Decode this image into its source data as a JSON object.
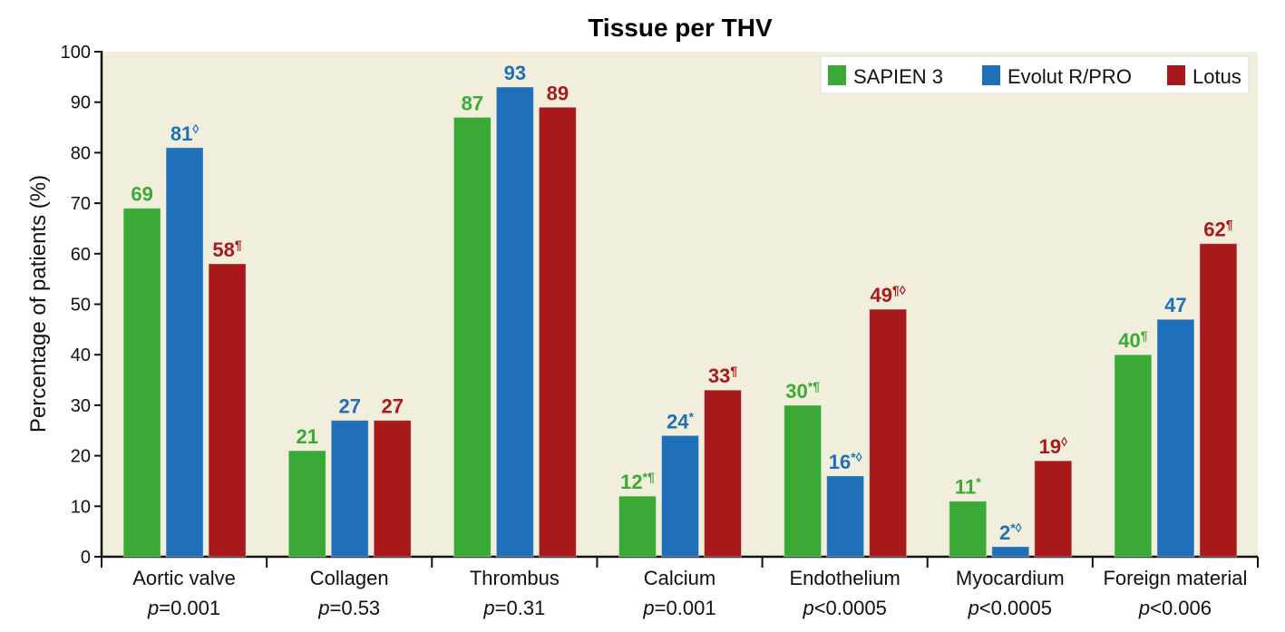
{
  "chart_data": {
    "type": "bar",
    "title": "Tissue per THV",
    "xlabel": "",
    "ylabel": "Percentage of patients (%)",
    "ylim": [
      0,
      100
    ],
    "yticks": [
      0,
      10,
      20,
      30,
      40,
      50,
      60,
      70,
      80,
      90,
      100
    ],
    "grid": false,
    "legend_position": "top-right",
    "categories": [
      "Aortic valve",
      "Collagen",
      "Thrombus",
      "Calcium",
      "Endothelium",
      "Myocardium",
      "Foreign material"
    ],
    "p_prefix": "p",
    "p_values": [
      "=0.001",
      "=0.53",
      "=0.31",
      "=0.001",
      "<0.0005",
      "<0.0005",
      "<0.006"
    ],
    "colors": {
      "background": "#f2eedc",
      "SAPIEN 3": "#3ba935",
      "Evolut R/PRO": "#1f70b8",
      "Lotus": "#a8191b"
    },
    "series": [
      {
        "name": "SAPIEN 3",
        "values": [
          69,
          21,
          87,
          12,
          30,
          11,
          40
        ],
        "marks": [
          "",
          "",
          "",
          "*¶",
          "*¶",
          "*",
          "¶"
        ]
      },
      {
        "name": "Evolut R/PRO",
        "values": [
          81,
          27,
          93,
          24,
          16,
          2,
          47
        ],
        "marks": [
          "◊",
          "",
          "",
          "*",
          "*◊",
          "*◊",
          ""
        ]
      },
      {
        "name": "Lotus",
        "values": [
          58,
          27,
          89,
          33,
          49,
          19,
          62
        ],
        "marks": [
          "¶",
          "",
          "",
          "¶",
          "¶◊",
          "◊",
          "¶"
        ]
      }
    ]
  }
}
